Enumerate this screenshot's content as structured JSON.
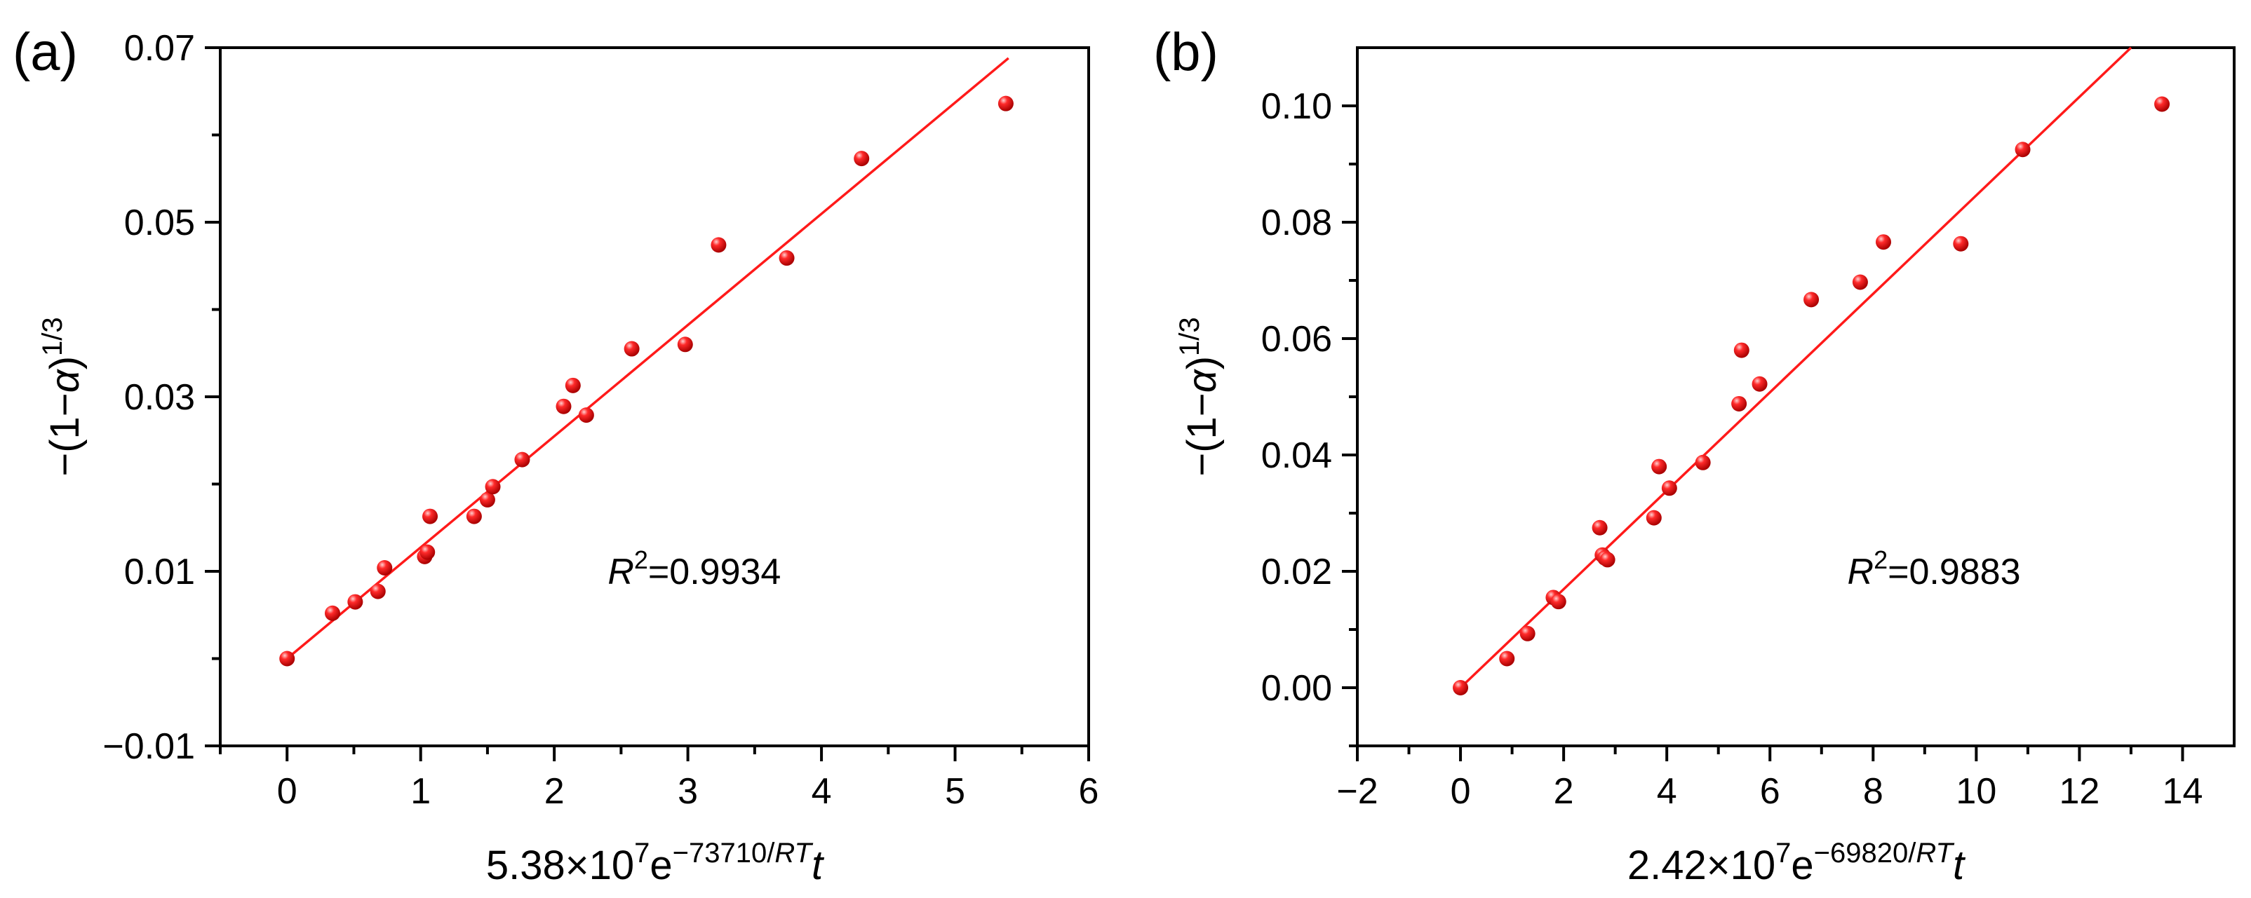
{
  "chart_data": [
    {
      "type": "scatter",
      "panel_label": "(a)",
      "xlabel": {
        "prefix": "5.38×10",
        "exp7": "7",
        "mid": "e",
        "exp": "−73710/",
        "exp_italic": "RT",
        "suffix": "t"
      },
      "ylabel": {
        "prefix": "−(1−",
        "alpha": "α",
        "mid": ")",
        "exp": "1/3"
      },
      "xlim": [
        -0.5,
        6
      ],
      "ylim": [
        -0.01,
        0.07
      ],
      "xticks": [
        0,
        1,
        2,
        3,
        4,
        5,
        6
      ],
      "xtick_labels": [
        "0",
        "1",
        "2",
        "3",
        "4",
        "5",
        "6"
      ],
      "yticks": [
        -0.01,
        0.01,
        0.03,
        0.05,
        0.07
      ],
      "ytick_labels": [
        "−0.01",
        "0.01",
        "0.03",
        "0.05",
        "0.07"
      ],
      "yticks_minor": [
        0.0,
        0.02,
        0.04,
        0.06
      ],
      "r2": {
        "symbol": "R",
        "sup": "2",
        "value": "=0.9934"
      },
      "r2_pos": [
        2.4,
        0.01
      ],
      "fit": {
        "x": [
          0,
          5.4
        ],
        "y": [
          0.0,
          0.0688
        ]
      },
      "x": [
        0.0,
        0.34,
        0.51,
        0.68,
        0.73,
        1.03,
        1.05,
        1.07,
        1.4,
        1.5,
        1.54,
        1.76,
        2.07,
        2.14,
        2.24,
        2.58,
        2.98,
        3.23,
        3.74,
        4.3,
        5.38
      ],
      "y": [
        0.0,
        0.0052,
        0.0065,
        0.0077,
        0.0104,
        0.0117,
        0.0122,
        0.0163,
        0.0163,
        0.0182,
        0.0197,
        0.0228,
        0.0289,
        0.0313,
        0.0279,
        0.0355,
        0.036,
        0.0474,
        0.0459,
        0.0573,
        0.0636
      ]
    },
    {
      "type": "scatter",
      "panel_label": "(b)",
      "xlabel": {
        "prefix": "2.42×10",
        "exp7": "7",
        "mid": "e",
        "exp": "−69820/",
        "exp_italic": "RT",
        "suffix": "t"
      },
      "ylabel": {
        "prefix": "−(1−",
        "alpha": "α",
        "mid": ")",
        "exp": "1/3"
      },
      "xlim": [
        -2,
        15
      ],
      "ylim": [
        -0.01,
        0.11
      ],
      "xticks": [
        -2,
        0,
        2,
        4,
        6,
        8,
        10,
        12,
        14
      ],
      "xtick_labels": [
        "−2",
        "0",
        "2",
        "4",
        "6",
        "8",
        "10",
        "12",
        "14"
      ],
      "yticks": [
        0.0,
        0.02,
        0.04,
        0.06,
        0.08,
        0.1
      ],
      "ytick_labels": [
        "0.00",
        "0.02",
        "0.04",
        "0.06",
        "0.08",
        "0.10"
      ],
      "yticks_minor": [
        -0.01,
        0.01,
        0.03,
        0.05,
        0.07,
        0.09
      ],
      "r2": {
        "symbol": "R",
        "sup": "2",
        "value": "=0.9883"
      },
      "r2_pos": [
        7.5,
        0.02
      ],
      "fit": {
        "x": [
          0,
          13.0
        ],
        "y": [
          0.0,
          0.11
        ]
      },
      "x": [
        0.0,
        0.9,
        1.3,
        1.8,
        1.9,
        2.7,
        2.75,
        2.8,
        2.85,
        3.75,
        3.85,
        4.05,
        4.7,
        5.4,
        5.45,
        5.8,
        6.8,
        7.75,
        8.2,
        9.7,
        10.9,
        13.6
      ],
      "y": [
        0.0,
        0.005,
        0.0093,
        0.0155,
        0.0148,
        0.0275,
        0.0228,
        0.0223,
        0.022,
        0.0292,
        0.038,
        0.0343,
        0.0387,
        0.0488,
        0.058,
        0.0522,
        0.0667,
        0.0697,
        0.0766,
        0.0763,
        0.0925,
        0.1003
      ]
    }
  ]
}
